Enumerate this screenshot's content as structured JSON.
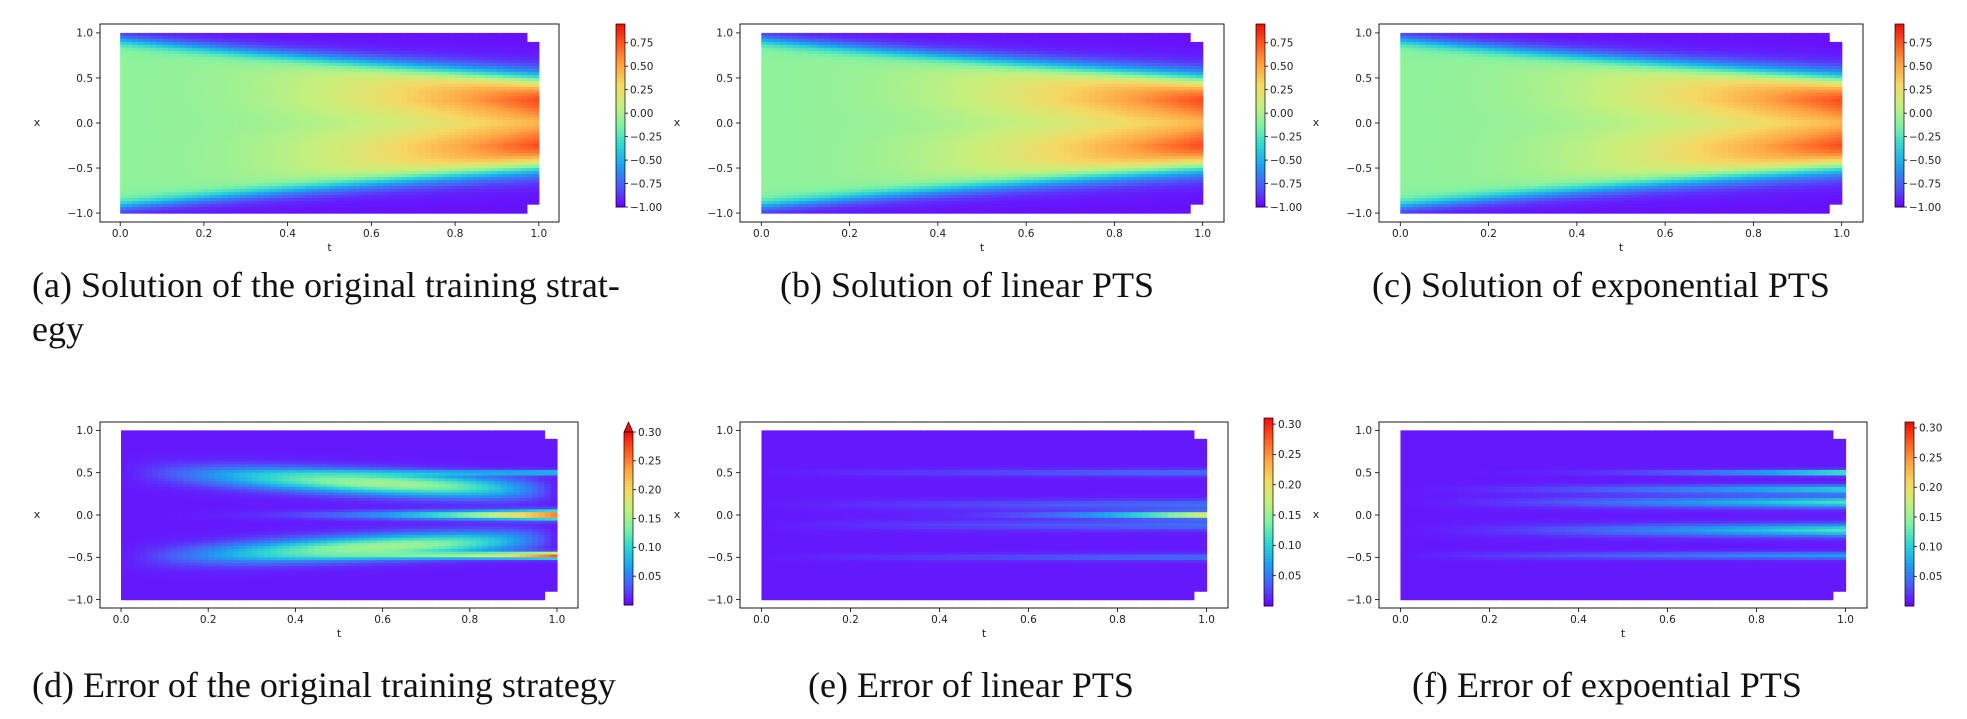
{
  "figure": {
    "colormap": [
      "#6e00ff",
      "#4a5cf7",
      "#1e9ff0",
      "#2fd6d2",
      "#80f2a4",
      "#c6f07d",
      "#f6d863",
      "#ffa444",
      "#ff5b22",
      "#ee0c0c"
    ],
    "panels": [
      {
        "id": "a",
        "caption_lines": [
          "(a) Solution of the original training strat-",
          "egy"
        ]
      },
      {
        "id": "b",
        "caption_lines": [
          "(b) Solution of linear PTS"
        ]
      },
      {
        "id": "c",
        "caption_lines": [
          "(c) Solution of exponential PTS"
        ]
      },
      {
        "id": "d",
        "caption_lines": [
          "(d) Error of the original training strategy"
        ]
      },
      {
        "id": "e",
        "caption_lines": [
          "(e) Error of linear PTS"
        ]
      },
      {
        "id": "f",
        "caption_lines": [
          "(f) Error of expoential PTS"
        ]
      }
    ]
  },
  "chart_data": [
    {
      "type": "heatmap",
      "panel": "a",
      "xlabel": "t",
      "ylabel": "x",
      "xlim": [
        0,
        1
      ],
      "ylim": [
        -1,
        1
      ],
      "xticks": [
        "0.0",
        "0.2",
        "0.4",
        "0.6",
        "0.8",
        "1.0"
      ],
      "yticks": [
        "1.0",
        "0.5",
        "0.0",
        "−0.5",
        "−1.0"
      ],
      "colorbar": {
        "min": -1.0,
        "max": 0.95,
        "extend": "none",
        "ticks": [
          0.75,
          0.5,
          0.25,
          0.0,
          -0.25,
          -0.5,
          -0.75,
          -1.0
        ],
        "labels": [
          "0.75",
          "0.50",
          "0.25",
          "0.00",
          "−0.25",
          "−0.50",
          "−0.75",
          "−1.00"
        ]
      }
    },
    {
      "type": "heatmap",
      "panel": "b",
      "xlabel": "t",
      "ylabel": "x",
      "xlim": [
        0,
        1
      ],
      "ylim": [
        -1,
        1
      ],
      "xticks": [
        "0.0",
        "0.2",
        "0.4",
        "0.6",
        "0.8",
        "1.0"
      ],
      "yticks": [
        "1.0",
        "0.5",
        "0.0",
        "−0.5",
        "−1.0"
      ],
      "colorbar": {
        "min": -1.0,
        "max": 0.95,
        "extend": "none",
        "ticks": [
          0.75,
          0.5,
          0.25,
          0.0,
          -0.25,
          -0.5,
          -0.75,
          -1.0
        ],
        "labels": [
          "0.75",
          "0.50",
          "0.25",
          "0.00",
          "−0.25",
          "−0.50",
          "−0.75",
          "−1.00"
        ]
      }
    },
    {
      "type": "heatmap",
      "panel": "c",
      "xlabel": "t",
      "ylabel": "x",
      "xlim": [
        0,
        1
      ],
      "ylim": [
        -1,
        1
      ],
      "xticks": [
        "0.0",
        "0.2",
        "0.4",
        "0.6",
        "0.8",
        "1.0"
      ],
      "yticks": [
        "1.0",
        "0.5",
        "0.0",
        "−0.5",
        "−1.0"
      ],
      "colorbar": {
        "min": -1.0,
        "max": 0.95,
        "extend": "none",
        "ticks": [
          0.75,
          0.5,
          0.25,
          0.0,
          -0.25,
          -0.5,
          -0.75,
          -1.0
        ],
        "labels": [
          "0.75",
          "0.50",
          "0.25",
          "0.00",
          "−0.25",
          "−0.50",
          "−0.75",
          "−1.00"
        ]
      }
    },
    {
      "type": "heatmap",
      "panel": "d",
      "xlabel": "t",
      "ylabel": "x",
      "xlim": [
        0,
        1
      ],
      "ylim": [
        -1,
        1
      ],
      "xticks": [
        "0.0",
        "0.2",
        "0.4",
        "0.6",
        "0.8",
        "1.0"
      ],
      "yticks": [
        "1.0",
        "0.5",
        "0.0",
        "−0.5",
        "−1.0"
      ],
      "colorbar": {
        "min": 0.0,
        "max": 0.3,
        "extend": "max",
        "ticks": [
          0.3,
          0.25,
          0.2,
          0.15,
          0.1,
          0.05
        ],
        "labels": [
          "0.30",
          "0.25",
          "0.20",
          "0.15",
          "0.10",
          "0.05"
        ]
      }
    },
    {
      "type": "heatmap",
      "panel": "e",
      "xlabel": "t",
      "ylabel": "x",
      "xlim": [
        0,
        1
      ],
      "ylim": [
        -1,
        1
      ],
      "xticks": [
        "0.0",
        "0.2",
        "0.4",
        "0.6",
        "0.8",
        "1.0"
      ],
      "yticks": [
        "1.0",
        "0.5",
        "0.0",
        "−0.5",
        "−1.0"
      ],
      "colorbar": {
        "min": 0.0,
        "max": 0.31,
        "extend": "none",
        "ticks": [
          0.3,
          0.25,
          0.2,
          0.15,
          0.1,
          0.05
        ],
        "labels": [
          "0.30",
          "0.25",
          "0.20",
          "0.15",
          "0.10",
          "0.05"
        ]
      }
    },
    {
      "type": "heatmap",
      "panel": "f",
      "xlabel": "t",
      "ylabel": "x",
      "xlim": [
        0,
        1
      ],
      "ylim": [
        -1,
        1
      ],
      "xticks": [
        "0.0",
        "0.2",
        "0.4",
        "0.6",
        "0.8",
        "1.0"
      ],
      "yticks": [
        "1.0",
        "0.5",
        "0.0",
        "−0.5",
        "−1.0"
      ],
      "colorbar": {
        "min": 0.0,
        "max": 0.31,
        "extend": "none",
        "ticks": [
          0.3,
          0.25,
          0.2,
          0.15,
          0.1,
          0.05
        ],
        "labels": [
          "0.30",
          "0.25",
          "0.20",
          "0.15",
          "0.10",
          "0.05"
        ]
      }
    }
  ]
}
